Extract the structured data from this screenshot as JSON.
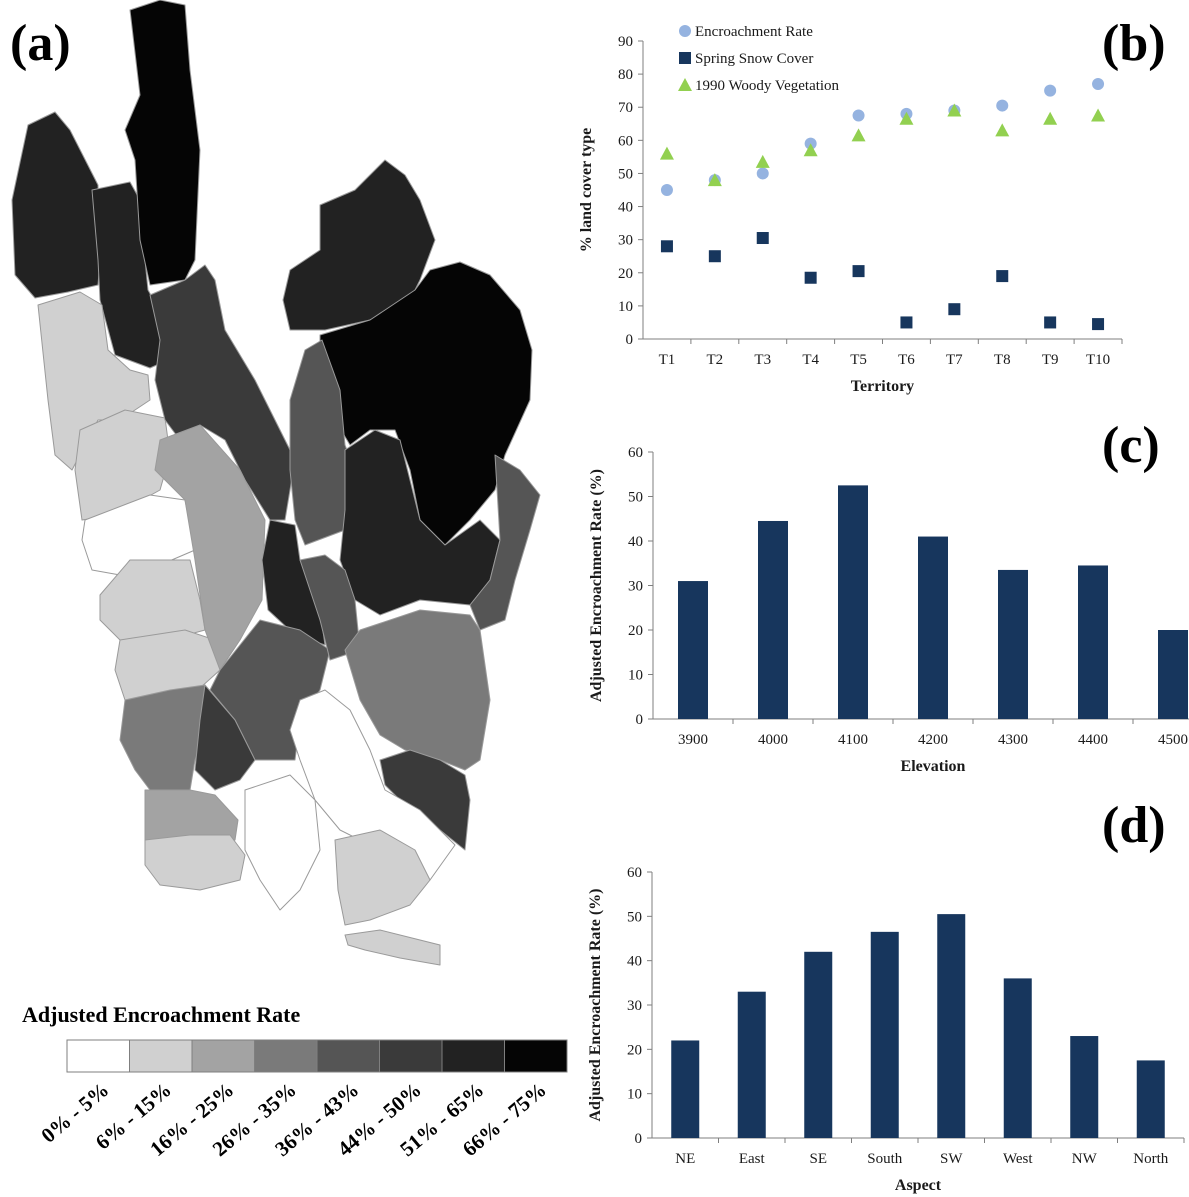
{
  "panels": {
    "a": "(a)",
    "b": "(b)",
    "c": "(c)",
    "d": "(d)"
  },
  "map_legend": {
    "title": "Adjusted Encroachment Rate",
    "classes": [
      {
        "label": "0% - 5%",
        "color": "#ffffff"
      },
      {
        "label": "6% - 15%",
        "color": "#d0d0d0"
      },
      {
        "label": "16% - 25%",
        "color": "#a3a3a3"
      },
      {
        "label": "26% - 35%",
        "color": "#7a7a7a"
      },
      {
        "label": "36% - 43%",
        "color": "#555555"
      },
      {
        "label": "44% - 50%",
        "color": "#3a3a3a"
      },
      {
        "label": "51% - 65%",
        "color": "#222222"
      },
      {
        "label": "66% - 75%",
        "color": "#050505"
      }
    ]
  },
  "chart_data": [
    {
      "id": "b",
      "type": "scatter",
      "categories": [
        "T1",
        "T2",
        "T3",
        "T4",
        "T5",
        "T6",
        "T7",
        "T8",
        "T9",
        "T10"
      ],
      "series": [
        {
          "name": "Encroachment Rate",
          "marker": "circle",
          "color": "#95b3e0",
          "values": [
            45,
            48,
            50,
            59,
            67.5,
            68,
            69,
            70.5,
            75,
            77
          ]
        },
        {
          "name": "Spring Snow Cover",
          "marker": "square",
          "color": "#17365d",
          "values": [
            28,
            25,
            30.5,
            18.5,
            20.5,
            5,
            9,
            19,
            5,
            4.5
          ]
        },
        {
          "name": "1990 Woody Vegetation",
          "marker": "triangle",
          "color": "#92d050",
          "values": [
            56,
            48,
            53.5,
            57,
            61.5,
            66.5,
            69,
            63,
            66.5,
            67.5
          ]
        }
      ],
      "xlabel": "Territory",
      "ylabel": "% land cover type",
      "ylim": [
        0,
        90
      ],
      "yticks": [
        0,
        10,
        20,
        30,
        40,
        50,
        60,
        70,
        80,
        90
      ],
      "legend": "top-left"
    },
    {
      "id": "c",
      "type": "bar",
      "categories": [
        "3900",
        "4000",
        "4100",
        "4200",
        "4300",
        "4400",
        "4500"
      ],
      "values": [
        31,
        44.5,
        52.5,
        41,
        33.5,
        34.5,
        20
      ],
      "color": "#17365d",
      "xlabel": "Elevation",
      "ylabel": "Adjusted Encroachment Rate (%)",
      "ylim": [
        0,
        60
      ],
      "yticks": [
        0,
        10,
        20,
        30,
        40,
        50,
        60
      ]
    },
    {
      "id": "d",
      "type": "bar",
      "categories": [
        "NE",
        "East",
        "SE",
        "South",
        "SW",
        "West",
        "NW",
        "North"
      ],
      "values": [
        22,
        33,
        42,
        46.5,
        50.5,
        36,
        23,
        17.5
      ],
      "color": "#17365d",
      "xlabel": "Aspect",
      "ylabel": "Adjusted Encroachment Rate (%)",
      "ylim": [
        0,
        60
      ],
      "yticks": [
        0,
        10,
        20,
        30,
        40,
        50,
        60
      ]
    }
  ]
}
